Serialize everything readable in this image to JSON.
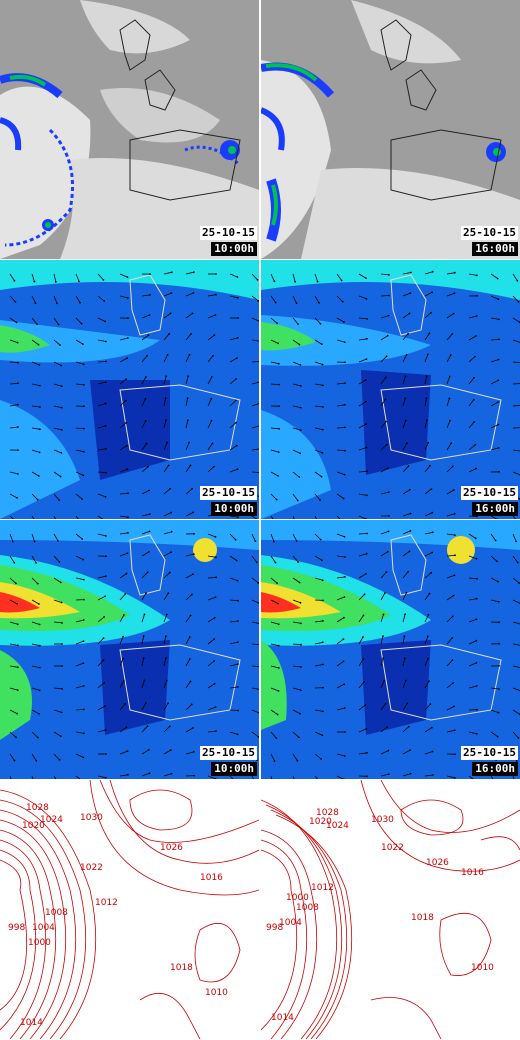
{
  "date": "25-10-15",
  "rows": [
    {
      "id": "satellite",
      "panels": [
        {
          "time": "10:00h"
        },
        {
          "time": "16:00h"
        }
      ]
    },
    {
      "id": "wind-low",
      "panels": [
        {
          "time": "10:00h"
        },
        {
          "time": "16:00h"
        }
      ]
    },
    {
      "id": "wind-high",
      "panels": [
        {
          "time": "10:00h"
        },
        {
          "time": "16:00h"
        }
      ]
    },
    {
      "id": "pressure",
      "panels": [
        {
          "time": ""
        },
        {
          "time": ""
        }
      ]
    }
  ],
  "isobar_labels": [
    "1028",
    "1024",
    "1020",
    "1030",
    "1026",
    "1016",
    "1012",
    "1008",
    "1004",
    "1000",
    "998",
    "1018",
    "1014",
    "1010",
    "1022"
  ],
  "colors": {
    "satellite_bg": "#9a9a9a",
    "cloud": "#e8e8e8",
    "rain_blue": "#1a3cff",
    "rain_green": "#00c050",
    "wind_bg": "#1565e0",
    "wind_light": "#29a8ff",
    "wind_cyan": "#20e0e8",
    "wind_green": "#40e060",
    "wind_yellow": "#f0e030",
    "wind_red": "#ff3020",
    "isobar": "#cc0000"
  }
}
